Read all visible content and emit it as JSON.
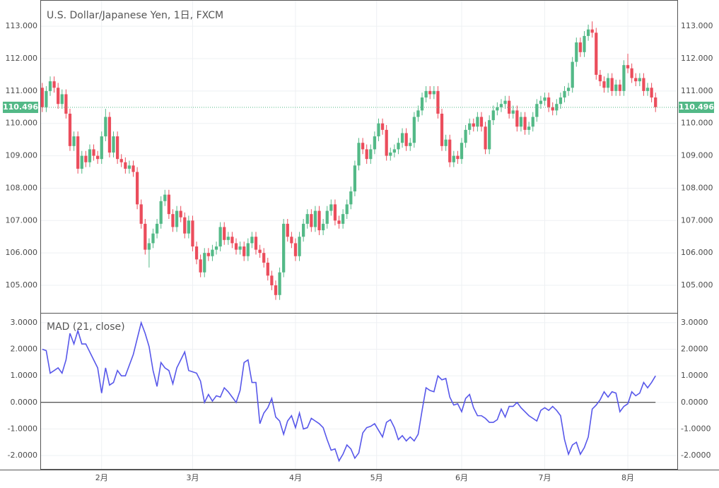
{
  "chart_data": [
    {
      "type": "candlestick",
      "title": "U.S. Dollar/Japanese Yen, 1日, FXCM",
      "up_color": "#53b987",
      "down_color": "#eb4d5c",
      "xlim": [
        -0.5,
        160.5
      ],
      "xticks": [
        {
          "value": 15,
          "label": "2月"
        },
        {
          "value": 38,
          "label": "3月"
        },
        {
          "value": 64,
          "label": "4月"
        },
        {
          "value": 84.5,
          "label": "5月"
        },
        {
          "value": 106,
          "label": "6月"
        },
        {
          "value": 127,
          "label": "7月"
        },
        {
          "value": 148,
          "label": "8月"
        }
      ],
      "ylim": [
        104.15,
        113.81
      ],
      "yticks": [
        {
          "value": 105,
          "label": "105.000"
        },
        {
          "value": 106,
          "label": "106.000"
        },
        {
          "value": 107,
          "label": "107.000"
        },
        {
          "value": 108,
          "label": "108.000"
        },
        {
          "value": 109,
          "label": "109.000"
        },
        {
          "value": 110,
          "label": "110.000"
        },
        {
          "value": 111,
          "label": "111.000"
        },
        {
          "value": 112,
          "label": "112.000"
        },
        {
          "value": 113,
          "label": "113.000"
        }
      ],
      "grid": true,
      "last_price": 110.496,
      "last_price_color": "#53b987",
      "ohlc": [
        [
          111.1,
          111.25,
          110.35,
          110.5
        ],
        [
          110.5,
          111.15,
          110.35,
          111.0
        ],
        [
          111.0,
          111.45,
          110.85,
          111.3
        ],
        [
          111.3,
          111.45,
          110.95,
          111.1
        ],
        [
          111.1,
          111.25,
          110.45,
          110.6
        ],
        [
          110.6,
          111.05,
          110.45,
          110.9
        ],
        [
          110.9,
          111.05,
          110.15,
          110.3
        ],
        [
          110.3,
          110.45,
          109.15,
          109.3
        ],
        [
          109.3,
          109.75,
          109.15,
          109.6
        ],
        [
          109.6,
          109.75,
          108.45,
          108.6
        ],
        [
          108.6,
          109.15,
          108.45,
          109.0
        ],
        [
          109.0,
          109.15,
          108.65,
          108.8
        ],
        [
          108.8,
          109.35,
          108.65,
          109.2
        ],
        [
          109.2,
          109.35,
          108.85,
          109.0
        ],
        [
          109.0,
          109.15,
          108.75,
          108.9
        ],
        [
          108.9,
          109.75,
          108.75,
          109.6
        ],
        [
          109.6,
          110.45,
          109.45,
          110.2
        ],
        [
          110.2,
          110.35,
          108.95,
          109.1
        ],
        [
          109.1,
          109.75,
          108.95,
          109.6
        ],
        [
          109.6,
          109.75,
          108.75,
          108.9
        ],
        [
          108.9,
          109.05,
          108.65,
          108.8
        ],
        [
          108.8,
          108.95,
          108.45,
          108.6
        ],
        [
          108.6,
          108.85,
          108.45,
          108.7
        ],
        [
          108.7,
          108.85,
          108.35,
          108.5
        ],
        [
          108.5,
          108.65,
          107.35,
          107.5
        ],
        [
          107.5,
          107.65,
          106.75,
          106.9
        ],
        [
          106.9,
          107.05,
          105.95,
          106.1
        ],
        [
          106.1,
          106.45,
          105.55,
          106.3
        ],
        [
          106.3,
          106.75,
          106.15,
          106.6
        ],
        [
          106.6,
          107.05,
          106.45,
          106.9
        ],
        [
          106.9,
          107.75,
          106.75,
          107.6
        ],
        [
          107.6,
          107.95,
          107.45,
          107.8
        ],
        [
          107.8,
          107.95,
          107.05,
          107.2
        ],
        [
          107.2,
          107.35,
          106.65,
          106.8
        ],
        [
          106.8,
          107.45,
          106.65,
          107.3
        ],
        [
          107.3,
          107.45,
          106.95,
          107.1
        ],
        [
          107.1,
          107.25,
          106.45,
          106.6
        ],
        [
          106.6,
          107.15,
          106.45,
          107.0
        ],
        [
          107.0,
          107.15,
          106.05,
          106.2
        ],
        [
          106.2,
          106.35,
          105.65,
          105.8
        ],
        [
          105.8,
          105.95,
          105.25,
          105.4
        ],
        [
          105.4,
          106.15,
          105.25,
          106.0
        ],
        [
          106.0,
          106.15,
          105.75,
          105.9
        ],
        [
          105.9,
          106.25,
          105.75,
          106.1
        ],
        [
          106.1,
          106.35,
          105.95,
          106.2
        ],
        [
          106.2,
          106.95,
          106.05,
          106.8
        ],
        [
          106.8,
          106.95,
          106.25,
          106.4
        ],
        [
          106.4,
          106.65,
          106.25,
          106.5
        ],
        [
          106.5,
          106.65,
          106.15,
          106.3
        ],
        [
          106.3,
          106.45,
          105.95,
          106.1
        ],
        [
          106.1,
          106.35,
          105.95,
          106.2
        ],
        [
          106.2,
          106.35,
          105.75,
          105.9
        ],
        [
          105.9,
          106.45,
          105.75,
          106.3
        ],
        [
          106.3,
          106.65,
          106.15,
          106.5
        ],
        [
          106.5,
          106.65,
          105.95,
          106.1
        ],
        [
          106.1,
          106.25,
          105.85,
          106.0
        ],
        [
          106.0,
          106.15,
          105.55,
          105.7
        ],
        [
          105.7,
          105.85,
          105.15,
          105.3
        ],
        [
          105.3,
          105.45,
          104.85,
          105.0
        ],
        [
          105.0,
          105.15,
          104.55,
          104.7
        ],
        [
          104.7,
          105.55,
          104.55,
          105.4
        ],
        [
          105.4,
          107.05,
          105.25,
          106.9
        ],
        [
          106.9,
          107.05,
          106.35,
          106.5
        ],
        [
          106.5,
          106.65,
          106.15,
          106.3
        ],
        [
          106.3,
          106.45,
          105.75,
          105.9
        ],
        [
          105.9,
          106.65,
          105.75,
          106.5
        ],
        [
          106.5,
          107.05,
          106.35,
          106.9
        ],
        [
          106.9,
          107.35,
          106.75,
          107.2
        ],
        [
          107.2,
          107.35,
          106.65,
          106.8
        ],
        [
          106.8,
          107.45,
          106.65,
          107.3
        ],
        [
          107.3,
          107.45,
          106.55,
          106.7
        ],
        [
          106.7,
          107.05,
          106.55,
          106.9
        ],
        [
          106.9,
          107.45,
          106.75,
          107.3
        ],
        [
          107.3,
          107.65,
          107.15,
          107.5
        ],
        [
          107.5,
          107.65,
          106.85,
          107.0
        ],
        [
          107.0,
          107.15,
          106.75,
          106.9
        ],
        [
          106.9,
          107.35,
          106.75,
          107.2
        ],
        [
          107.2,
          107.65,
          107.05,
          107.5
        ],
        [
          107.5,
          108.05,
          107.35,
          107.9
        ],
        [
          107.9,
          108.85,
          107.75,
          108.7
        ],
        [
          108.7,
          109.55,
          108.55,
          109.4
        ],
        [
          109.4,
          109.55,
          109.05,
          109.2
        ],
        [
          109.2,
          109.35,
          108.75,
          108.9
        ],
        [
          108.9,
          109.35,
          108.75,
          109.2
        ],
        [
          109.2,
          109.75,
          109.05,
          109.6
        ],
        [
          109.6,
          110.15,
          109.45,
          110.0
        ],
        [
          110.0,
          110.15,
          109.65,
          109.8
        ],
        [
          109.8,
          109.95,
          108.85,
          109.0
        ],
        [
          109.0,
          109.25,
          108.85,
          109.1
        ],
        [
          109.1,
          109.35,
          108.95,
          109.2
        ],
        [
          109.2,
          109.55,
          109.05,
          109.4
        ],
        [
          109.4,
          109.85,
          109.25,
          109.7
        ],
        [
          109.7,
          109.85,
          109.15,
          109.3
        ],
        [
          109.3,
          109.55,
          109.15,
          109.4
        ],
        [
          109.4,
          110.35,
          109.25,
          110.2
        ],
        [
          110.2,
          110.55,
          110.05,
          110.4
        ],
        [
          110.4,
          110.95,
          110.25,
          110.8
        ],
        [
          110.8,
          111.15,
          110.65,
          111.0
        ],
        [
          111.0,
          111.15,
          110.75,
          110.9
        ],
        [
          110.9,
          111.15,
          110.75,
          111.0
        ],
        [
          111.0,
          111.15,
          110.15,
          110.3
        ],
        [
          110.3,
          110.45,
          109.15,
          109.3
        ],
        [
          109.3,
          109.65,
          109.15,
          109.5
        ],
        [
          109.5,
          109.65,
          108.65,
          108.8
        ],
        [
          108.8,
          109.15,
          108.65,
          109.0
        ],
        [
          109.0,
          109.15,
          108.75,
          108.9
        ],
        [
          108.9,
          109.55,
          108.75,
          109.4
        ],
        [
          109.4,
          109.95,
          109.25,
          109.8
        ],
        [
          109.8,
          110.15,
          109.65,
          110.0
        ],
        [
          110.0,
          110.15,
          109.75,
          109.9
        ],
        [
          109.9,
          110.35,
          109.75,
          110.2
        ],
        [
          110.2,
          110.35,
          109.75,
          109.9
        ],
        [
          109.9,
          110.05,
          109.05,
          109.2
        ],
        [
          109.2,
          110.25,
          109.05,
          110.1
        ],
        [
          110.1,
          110.55,
          109.95,
          110.4
        ],
        [
          110.4,
          110.65,
          110.25,
          110.5
        ],
        [
          110.5,
          110.75,
          110.35,
          110.6
        ],
        [
          110.6,
          110.85,
          110.45,
          110.7
        ],
        [
          110.7,
          110.85,
          110.15,
          110.3
        ],
        [
          110.3,
          110.55,
          110.15,
          110.4
        ],
        [
          110.4,
          110.55,
          109.75,
          109.9
        ],
        [
          109.9,
          110.35,
          109.75,
          110.2
        ],
        [
          110.2,
          110.35,
          109.65,
          109.8
        ],
        [
          109.8,
          110.05,
          109.65,
          109.9
        ],
        [
          109.9,
          110.35,
          109.75,
          110.2
        ],
        [
          110.2,
          110.75,
          110.05,
          110.6
        ],
        [
          110.6,
          110.85,
          110.45,
          110.7
        ],
        [
          110.7,
          110.95,
          110.55,
          110.8
        ],
        [
          110.8,
          110.95,
          110.35,
          110.5
        ],
        [
          110.5,
          110.65,
          110.25,
          110.4
        ],
        [
          110.4,
          110.75,
          110.25,
          110.6
        ],
        [
          110.6,
          110.95,
          110.45,
          110.8
        ],
        [
          110.8,
          111.15,
          110.65,
          111.0
        ],
        [
          111.0,
          111.25,
          110.85,
          111.1
        ],
        [
          111.1,
          112.05,
          110.95,
          111.9
        ],
        [
          111.9,
          112.65,
          111.75,
          112.5
        ],
        [
          112.5,
          112.65,
          112.05,
          112.2
        ],
        [
          112.2,
          112.85,
          112.05,
          112.7
        ],
        [
          112.7,
          113.05,
          112.55,
          112.9
        ],
        [
          112.9,
          113.15,
          112.65,
          112.8
        ],
        [
          112.8,
          112.95,
          111.35,
          111.5
        ],
        [
          111.5,
          111.65,
          111.15,
          111.3
        ],
        [
          111.3,
          111.45,
          110.95,
          111.1
        ],
        [
          111.1,
          111.55,
          110.95,
          111.4
        ],
        [
          111.4,
          111.55,
          110.85,
          111.0
        ],
        [
          111.0,
          111.35,
          110.85,
          111.2
        ],
        [
          111.2,
          111.35,
          110.85,
          111.0
        ],
        [
          111.0,
          111.95,
          110.85,
          111.8
        ],
        [
          111.8,
          112.15,
          111.55,
          111.7
        ],
        [
          111.7,
          111.85,
          111.25,
          111.4
        ],
        [
          111.4,
          111.55,
          111.15,
          111.3
        ],
        [
          111.3,
          111.55,
          111.15,
          111.4
        ],
        [
          111.4,
          111.55,
          110.85,
          111.0
        ],
        [
          111.0,
          111.25,
          110.85,
          111.1
        ],
        [
          111.1,
          111.25,
          110.65,
          110.8
        ],
        [
          110.8,
          110.95,
          110.35,
          110.5
        ]
      ]
    },
    {
      "type": "line",
      "title": "MAD (21, close)",
      "color": "#5757ea",
      "ylim": [
        -2.53,
        3.37
      ],
      "yticks": [
        {
          "value": -2,
          "label": "-2.0000"
        },
        {
          "value": -1,
          "label": "-1.0000"
        },
        {
          "value": 0,
          "label": "0.0000"
        },
        {
          "value": 1,
          "label": "1.0000"
        },
        {
          "value": 2,
          "label": "2.0000"
        },
        {
          "value": 3,
          "label": "3.0000"
        }
      ],
      "zero_line": 0,
      "values": [
        2.0,
        1.95,
        1.1,
        1.2,
        1.3,
        1.1,
        1.6,
        2.6,
        2.2,
        2.7,
        2.2,
        2.2,
        1.9,
        1.6,
        1.3,
        0.35,
        1.3,
        0.65,
        0.75,
        1.2,
        1.0,
        1.0,
        1.4,
        1.8,
        2.4,
        3.0,
        2.6,
        2.1,
        1.2,
        0.6,
        1.5,
        1.3,
        1.2,
        0.7,
        1.3,
        1.6,
        1.9,
        1.2,
        1.15,
        1.1,
        0.8,
        0.0,
        0.3,
        0.05,
        0.25,
        0.2,
        0.55,
        0.4,
        0.2,
        0.0,
        0.45,
        1.5,
        1.6,
        0.75,
        0.75,
        -0.8,
        -0.4,
        -0.2,
        0.15,
        -0.55,
        -0.7,
        -1.2,
        -0.7,
        -0.5,
        -0.95,
        -0.4,
        -1.0,
        -0.95,
        -0.6,
        -0.7,
        -0.8,
        -0.95,
        -1.4,
        -1.8,
        -1.75,
        -2.2,
        -1.95,
        -1.6,
        -1.75,
        -2.1,
        -1.9,
        -1.15,
        -0.95,
        -0.9,
        -0.8,
        -1.05,
        -1.3,
        -0.75,
        -0.65,
        -0.95,
        -1.4,
        -1.25,
        -1.45,
        -1.3,
        -1.45,
        -1.2,
        -0.3,
        0.55,
        0.45,
        0.4,
        1.0,
        0.85,
        0.9,
        0.2,
        -0.1,
        -0.05,
        -0.35,
        0.15,
        0.3,
        -0.2,
        -0.5,
        -0.5,
        -0.6,
        -0.75,
        -0.75,
        -0.65,
        -0.25,
        -0.55,
        -0.15,
        -0.15,
        0.0,
        -0.2,
        -0.35,
        -0.5,
        -0.6,
        -0.7,
        -0.3,
        -0.2,
        -0.3,
        -0.15,
        -0.3,
        -0.5,
        -1.4,
        -1.95,
        -1.6,
        -1.5,
        -1.95,
        -1.7,
        -1.3,
        -0.25,
        -0.1,
        0.1,
        0.4,
        0.2,
        0.4,
        0.35,
        -0.35,
        -0.15,
        -0.05,
        0.4,
        0.25,
        0.35,
        0.75,
        0.55,
        0.75,
        1.0
      ]
    }
  ]
}
